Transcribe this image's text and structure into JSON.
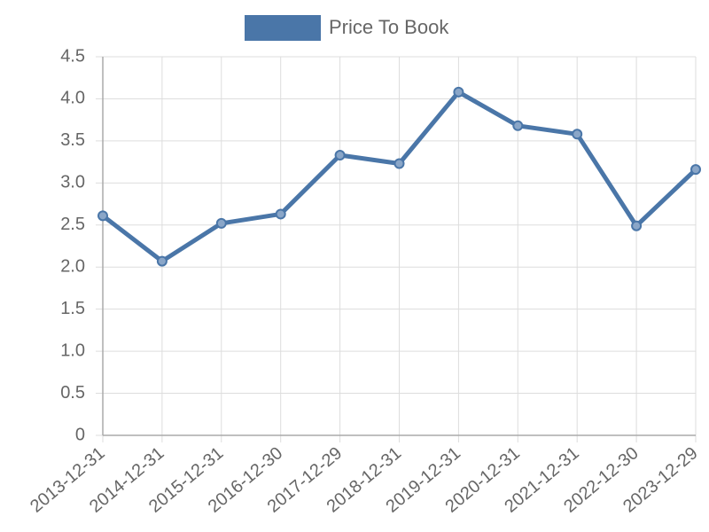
{
  "chart_data": {
    "type": "line",
    "categories": [
      "2013-12-31",
      "2014-12-31",
      "2015-12-31",
      "2016-12-30",
      "2017-12-29",
      "2018-12-31",
      "2019-12-31",
      "2020-12-31",
      "2021-12-31",
      "2022-12-30",
      "2023-12-29"
    ],
    "series": [
      {
        "name": "Price To Book",
        "color": "#4a76a8",
        "values": [
          2.61,
          2.07,
          2.52,
          2.63,
          3.33,
          3.23,
          4.08,
          3.68,
          3.58,
          2.49,
          3.16
        ]
      }
    ],
    "ylim": [
      0,
      4.5
    ],
    "yticks": [
      0,
      0.5,
      {
        "value": 1,
        "label": "1.0"
      },
      1.5,
      {
        "value": 2,
        "label": "2.0"
      },
      2.5,
      {
        "value": 3,
        "label": "3.0"
      },
      3.5,
      {
        "value": 4,
        "label": "4.0"
      },
      4.5
    ],
    "grid": true,
    "legend": "top"
  }
}
